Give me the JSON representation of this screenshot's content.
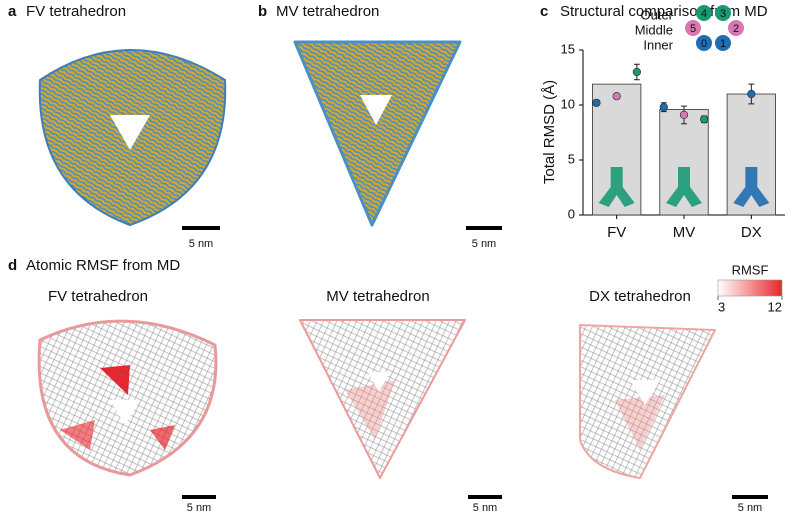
{
  "panels": {
    "a": {
      "letter": "a",
      "title": "FV tetrahedron",
      "scale": "5 nm"
    },
    "b": {
      "letter": "b",
      "title": "MV tetrahedron",
      "scale": "5 nm"
    },
    "c": {
      "letter": "c",
      "title": "Structural comparison from MD"
    },
    "d": {
      "letter": "d",
      "title": "Atomic RMSF from MD",
      "items": [
        {
          "title": "FV tetrahedron",
          "scale": "5 nm"
        },
        {
          "title": "MV tetrahedron",
          "scale": "5 nm"
        },
        {
          "title": "DX tetrahedron",
          "scale": "5 nm"
        }
      ],
      "colorbar": {
        "title": "RMSF",
        "ticks": [
          3,
          12
        ],
        "colors": [
          "#ffffff",
          "#e8262b"
        ]
      }
    }
  },
  "chart_data": {
    "type": "bar",
    "ylabel": "Total RMSD (Å)",
    "categories": [
      "FV",
      "MV",
      "DX"
    ],
    "values": [
      11.9,
      9.6,
      11.0
    ],
    "color": "#d9d9d9",
    "ylim": [
      0,
      15
    ],
    "yticks": [
      0,
      5,
      10,
      15
    ],
    "series": [
      {
        "name": "Outer",
        "color": "#1a9a74",
        "badges": [
          "4",
          "3"
        ],
        "values": [
          13.0,
          8.7,
          null
        ],
        "errors": [
          0.7,
          0.3,
          null
        ]
      },
      {
        "name": "Middle",
        "color": "#d977b3",
        "badges": [
          "5",
          "2"
        ],
        "values": [
          10.8,
          9.1,
          null
        ],
        "errors": [
          0.2,
          0.8,
          null
        ]
      },
      {
        "name": "Inner",
        "color": "#1f6db3",
        "badges": [
          "0",
          "1"
        ],
        "values": [
          10.2,
          9.8,
          11.0
        ],
        "errors": [
          0.2,
          0.4,
          0.9
        ]
      }
    ]
  }
}
